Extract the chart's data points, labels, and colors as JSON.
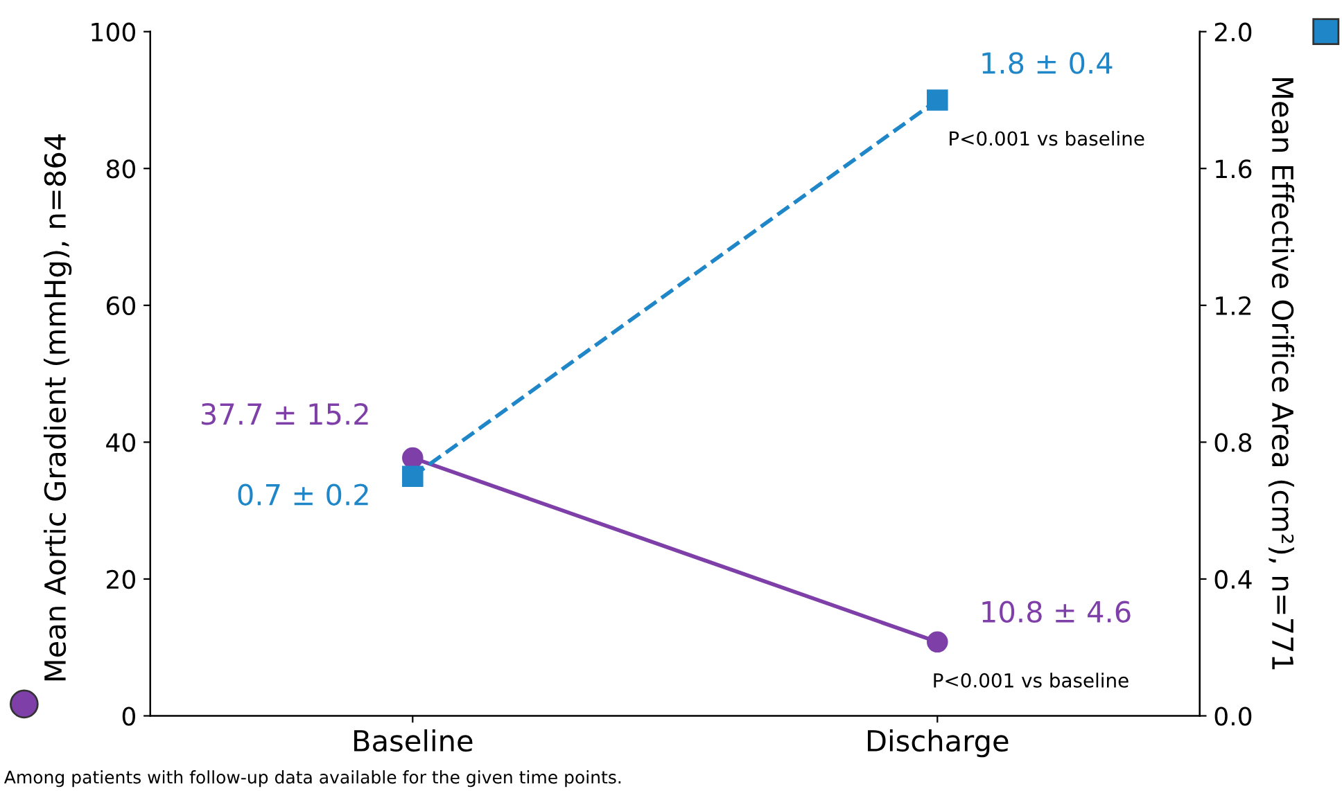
{
  "chart_data": {
    "type": "line",
    "categories": [
      "Baseline",
      "Discharge"
    ],
    "ylabel": "Mean Aortic Gradient (mmHg), n=864",
    "y2label": "Mean Effective Orifice Area (cm²), n=771",
    "series": [
      {
        "color": "#7e3fa8",
        "values": [
          37.7,
          10.8
        ],
        "marker": "circle",
        "line_style": "solid",
        "value_labels": [
          "37.7 ± 15.2",
          "10.8 ± 4.6"
        ]
      },
      {
        "color": "#1f86c8",
        "values": [
          0.7,
          1.8
        ],
        "axis": "y2",
        "marker": "square",
        "line_style": "dashed",
        "value_labels": [
          "0.7 ± 0.2",
          "1.8 ± 0.4"
        ]
      }
    ],
    "ylim": [
      0,
      100
    ],
    "yticks": [
      0,
      20,
      40,
      60,
      80,
      100
    ],
    "y2lim": [
      0,
      2.0
    ],
    "y2ticks": [
      {
        "value": 0,
        "label": "0.0"
      },
      0.4,
      0.8,
      1.2,
      1.6,
      {
        "value": 2,
        "label": "2.0"
      }
    ],
    "grid": false,
    "legend": false,
    "annotations": [
      "P<0.001 vs baseline",
      "P<0.001 vs baseline",
      "Among patients with follow-up data available for the given time points."
    ]
  }
}
